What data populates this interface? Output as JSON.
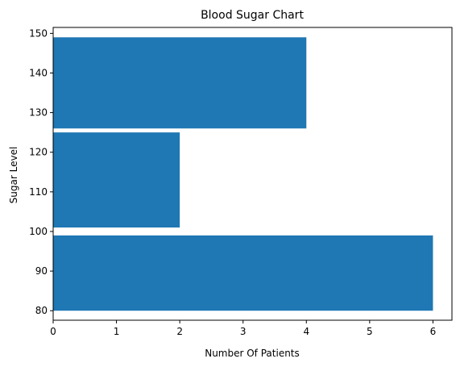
{
  "chart_data": {
    "type": "bar",
    "orientation": "horizontal",
    "title": "Blood Sugar Chart",
    "xlabel": "Number Of Patients",
    "ylabel": "Sugar Level",
    "bars": [
      {
        "y_from": 80,
        "y_to": 99,
        "value": 6
      },
      {
        "y_from": 101,
        "y_to": 125,
        "value": 2
      },
      {
        "y_from": 126,
        "y_to": 149,
        "value": 4
      }
    ],
    "xlim": [
      0,
      6.3
    ],
    "ylim": [
      77.6,
      151.5
    ],
    "xticks": [
      0,
      1,
      2,
      3,
      4,
      5,
      6
    ],
    "yticks": [
      80,
      90,
      100,
      110,
      120,
      130,
      140,
      150
    ],
    "grid": false,
    "bar_color": "#1f77b4"
  }
}
